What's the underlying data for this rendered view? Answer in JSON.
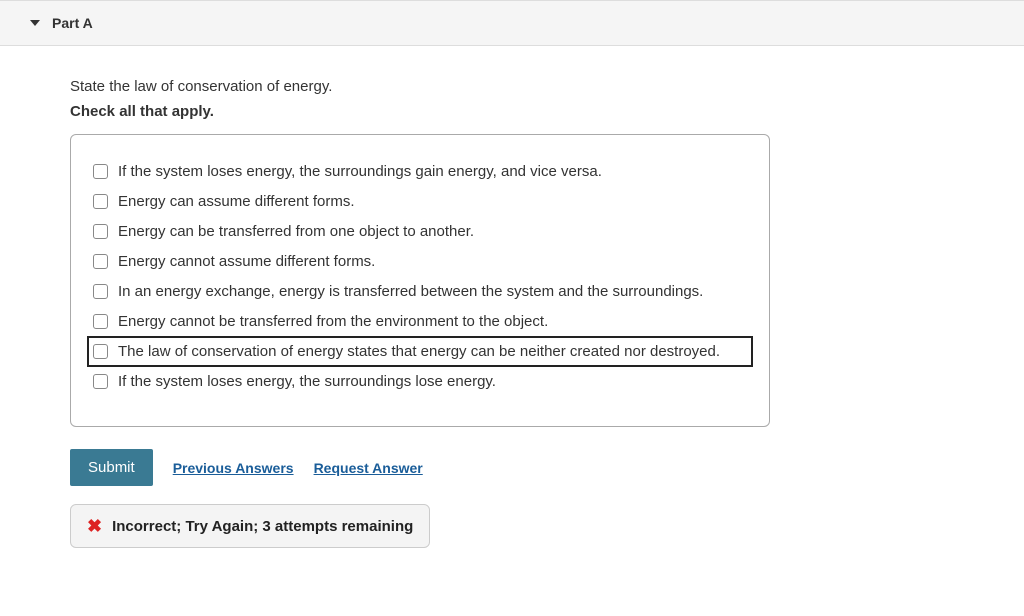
{
  "part": {
    "label": "Part A"
  },
  "question": "State the law of conservation of energy.",
  "instruction": "Check all that apply.",
  "options": [
    {
      "text": "If the system loses energy, the surroundings gain energy, and vice versa.",
      "highlighted": false
    },
    {
      "text": "Energy can assume different forms.",
      "highlighted": false
    },
    {
      "text": "Energy can be transferred from one object to another.",
      "highlighted": false
    },
    {
      "text": "Energy cannot assume different forms.",
      "highlighted": false
    },
    {
      "text": "In an energy exchange, energy is transferred between the system and the surroundings.",
      "highlighted": false
    },
    {
      "text": "Energy cannot be transferred from the environment to the object.",
      "highlighted": false
    },
    {
      "text": "The law of conservation of energy states that energy can be neither created nor destroyed.",
      "highlighted": true
    },
    {
      "text": "If the system loses energy, the surroundings lose energy.",
      "highlighted": false
    }
  ],
  "actions": {
    "submit": "Submit",
    "previous": "Previous Answers",
    "request": "Request Answer"
  },
  "feedback": {
    "text": "Incorrect; Try Again; 3 attempts remaining"
  },
  "colors": {
    "submit_bg": "#3a7a93",
    "link_color": "#1a5d99",
    "error_color": "#d22"
  }
}
